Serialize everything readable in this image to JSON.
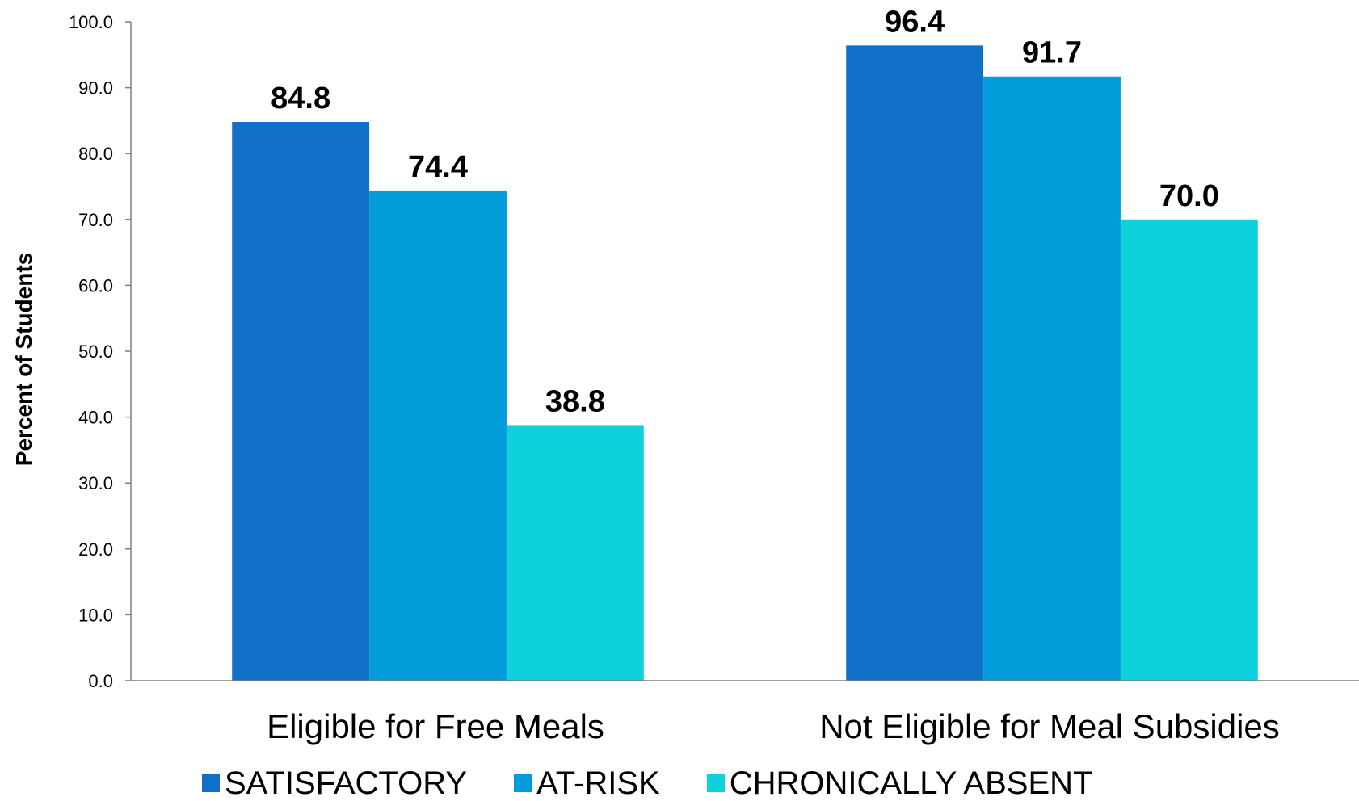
{
  "chart_data": {
    "type": "bar",
    "title": "",
    "xlabel": "",
    "ylabel": "Percent of Students",
    "ylim": [
      0,
      100
    ],
    "yticks": [
      "0.0",
      "10.0",
      "20.0",
      "30.0",
      "40.0",
      "50.0",
      "60.0",
      "70.0",
      "80.0",
      "90.0",
      "100.0"
    ],
    "categories": [
      "Eligible for Free Meals",
      "Not Eligible for Meal Subsidies"
    ],
    "series": [
      {
        "name": "SATISFACTORY",
        "color": "#1070c8",
        "values": [
          84.8,
          96.4
        ],
        "labels": [
          "84.8",
          "96.4"
        ]
      },
      {
        "name": "AT-RISK",
        "color": "#039cda",
        "values": [
          74.4,
          91.7
        ],
        "labels": [
          "74.4",
          "91.7"
        ]
      },
      {
        "name": "CHRONICALLY ABSENT",
        "color": "#0ed1dc",
        "values": [
          38.8,
          70.0
        ],
        "labels": [
          "38.8",
          "70.0"
        ]
      }
    ],
    "grid": false,
    "legend_position": "bottom"
  }
}
